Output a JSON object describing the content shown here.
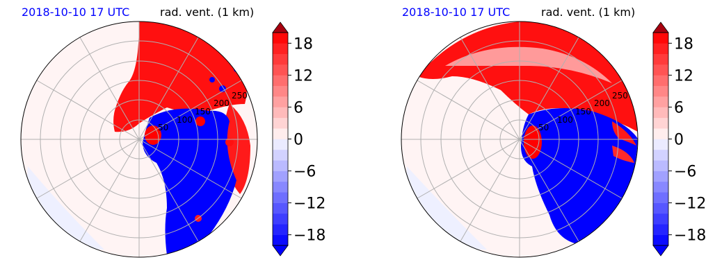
{
  "chart_data": [
    {
      "type": "heatmap",
      "projection": "polar",
      "timestamp": "2018-10-10 17 UTC",
      "title": "rad. vent. (1 km)",
      "timestamp_color": "#0000ff",
      "range_ring_labels": [
        "50",
        "100",
        "150",
        "200",
        "250"
      ],
      "colorbar": {
        "ticks": [
          "18",
          "12",
          "6",
          "0",
          "−6",
          "−12",
          "−18"
        ],
        "tick_values": [
          18,
          12,
          6,
          0,
          -6,
          -12,
          -18
        ],
        "vmin": -20,
        "vmax": 20,
        "step": 2,
        "extend": "both",
        "cmap": [
          "#0000ff",
          "#ffffff",
          "#ff0000"
        ]
      }
    },
    {
      "type": "heatmap",
      "projection": "polar",
      "timestamp": "2018-10-10 17 UTC",
      "title": "rad. vent. (1 km)",
      "timestamp_color": "#0000ff",
      "range_ring_labels": [
        "50",
        "100",
        "150",
        "200",
        "250"
      ],
      "colorbar": {
        "ticks": [
          "18",
          "12",
          "6",
          "0",
          "−6",
          "−12",
          "−18"
        ],
        "tick_values": [
          18,
          12,
          6,
          0,
          -6,
          -12,
          -18
        ],
        "vmin": -20,
        "vmax": 20,
        "step": 2,
        "extend": "both",
        "cmap": [
          "#0000ff",
          "#ffffff",
          "#ff0000"
        ]
      }
    }
  ]
}
